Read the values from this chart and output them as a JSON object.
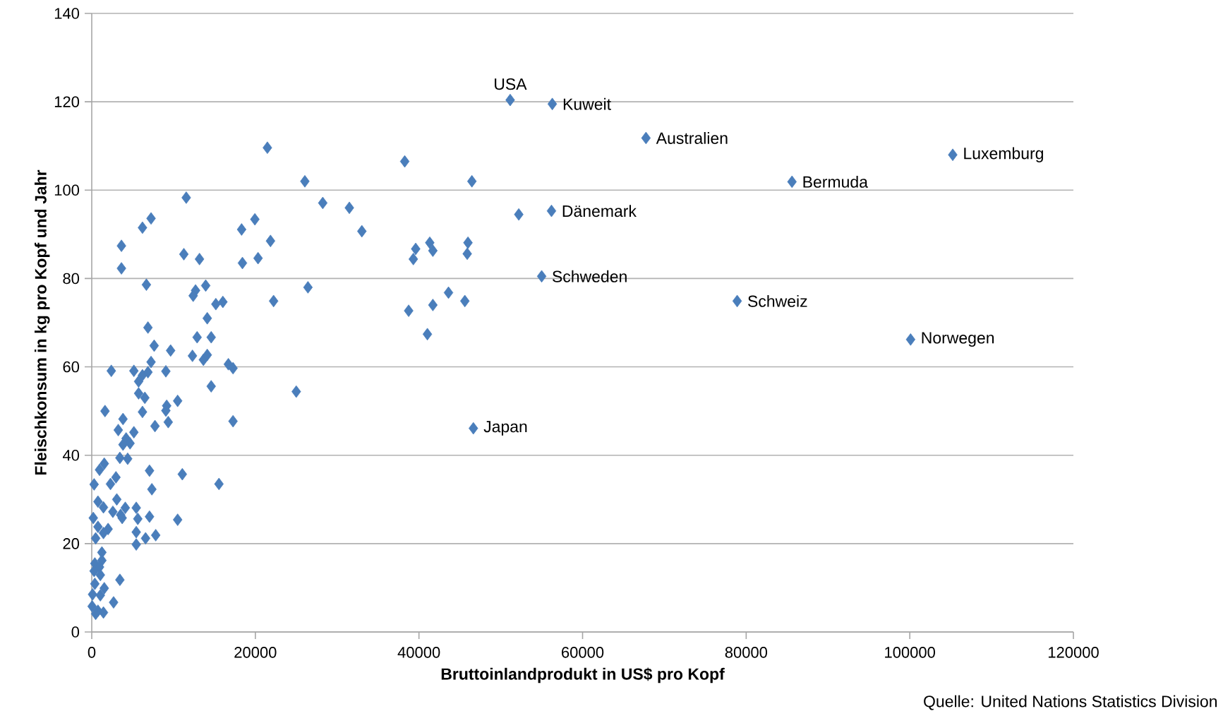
{
  "chart_data": {
    "type": "scatter",
    "xlabel": "Bruttoinlandprodukt in US$ pro Kopf",
    "ylabel": "Fleischkonsum in kg pro Kopf und Jahr",
    "xlim": [
      0,
      120000
    ],
    "xticks": [
      0,
      20000,
      40000,
      60000,
      80000,
      100000,
      120000
    ],
    "ylim": [
      0,
      140
    ],
    "yticks": [
      0,
      20,
      40,
      60,
      80,
      100,
      120,
      140
    ],
    "grid": "y",
    "marker": "diamond",
    "series": [
      {
        "color": "#4a7ebb",
        "x": [
          51150,
          56300,
          67750,
          105250,
          85600,
          56200,
          55000,
          78900,
          100100,
          46650,
          21470,
          38260,
          26050,
          46470,
          11550,
          28240,
          31490,
          7250,
          19940,
          6200,
          18320,
          33020,
          52200,
          41320,
          45990,
          21850,
          39600,
          41700,
          3630,
          11260,
          45900,
          20330,
          13170,
          39310,
          18420,
          3630,
          43610,
          6680,
          13930,
          26430,
          12690,
          12400,
          16030,
          15170,
          22230,
          45610,
          41700,
          38740,
          14120,
          41030,
          6870,
          12880,
          14600,
          7630,
          9640,
          12310,
          13650,
          14120,
          7250,
          2390,
          5150,
          9060,
          6200,
          6870,
          16700,
          17270,
          5730,
          14600,
          25000,
          6490,
          5730,
          10500,
          9160,
          9060,
          6200,
          1620,
          9350,
          17270,
          7730,
          3820,
          5150,
          3240,
          4200,
          3820,
          4680,
          4390,
          3440,
          1530,
          950,
          7060,
          11070,
          2960,
          2290,
          290,
          15550,
          7350,
          3060,
          760,
          1430,
          4100,
          5440,
          2580,
          3530,
          7060,
          190,
          10500,
          3720,
          5630,
          760,
          2000,
          1430,
          5440,
          7820,
          6580,
          480,
          5440,
          1240,
          1240,
          380,
          950,
          290,
          1050,
          3440,
          380,
          1530,
          100,
          1050,
          2670,
          50,
          760,
          1430,
          480
        ],
        "values": [
          120.4,
          119.5,
          111.8,
          108.0,
          101.9,
          95.3,
          80.5,
          74.9,
          66.2,
          46.1,
          109.6,
          106.5,
          102.0,
          102.0,
          98.3,
          97.1,
          96.0,
          93.6,
          93.4,
          91.5,
          91.1,
          90.7,
          94.5,
          88.1,
          88.1,
          88.5,
          86.7,
          86.3,
          87.4,
          85.5,
          85.6,
          84.6,
          84.4,
          84.4,
          83.5,
          82.3,
          76.8,
          78.6,
          78.4,
          78.0,
          77.3,
          76.1,
          74.7,
          74.2,
          74.9,
          74.9,
          74.0,
          72.7,
          71.0,
          67.4,
          68.9,
          66.7,
          66.7,
          64.8,
          63.7,
          62.5,
          61.6,
          62.7,
          61.1,
          59.1,
          59.1,
          59.0,
          58.1,
          58.8,
          60.6,
          59.7,
          56.7,
          55.6,
          54.4,
          53.0,
          54.0,
          52.3,
          51.2,
          50.1,
          49.8,
          50.0,
          47.5,
          47.7,
          46.6,
          48.2,
          45.2,
          45.7,
          43.8,
          42.4,
          42.7,
          39.2,
          39.4,
          38.1,
          36.7,
          36.5,
          35.7,
          35.0,
          33.5,
          33.4,
          33.5,
          32.3,
          30.0,
          29.5,
          28.2,
          28.1,
          28.1,
          27.2,
          26.5,
          26.1,
          25.8,
          25.4,
          25.8,
          25.6,
          23.8,
          23.3,
          22.4,
          22.6,
          21.9,
          21.2,
          21.2,
          19.8,
          18.0,
          16.2,
          15.5,
          14.7,
          13.8,
          12.9,
          11.8,
          10.9,
          9.9,
          8.5,
          8.3,
          6.7,
          5.8,
          4.8,
          4.4,
          4.1
        ]
      }
    ],
    "annotations": [
      {
        "text": "USA",
        "x": 51150,
        "y": 120.4
      },
      {
        "text": "Kuweit",
        "x": 56300,
        "y": 119.5
      },
      {
        "text": "Australien",
        "x": 67750,
        "y": 111.8
      },
      {
        "text": "Luxemburg",
        "x": 105250,
        "y": 108.0
      },
      {
        "text": "Bermuda",
        "x": 85600,
        "y": 101.9
      },
      {
        "text": "Dänemark",
        "x": 56200,
        "y": 95.3
      },
      {
        "text": "Schweden",
        "x": 55000,
        "y": 80.5
      },
      {
        "text": "Schweiz",
        "x": 78900,
        "y": 74.9
      },
      {
        "text": "Norwegen",
        "x": 100100,
        "y": 66.2
      },
      {
        "text": "Japan",
        "x": 46650,
        "y": 46.1
      },
      "Quelle: United Nations Statistics Division"
    ]
  }
}
